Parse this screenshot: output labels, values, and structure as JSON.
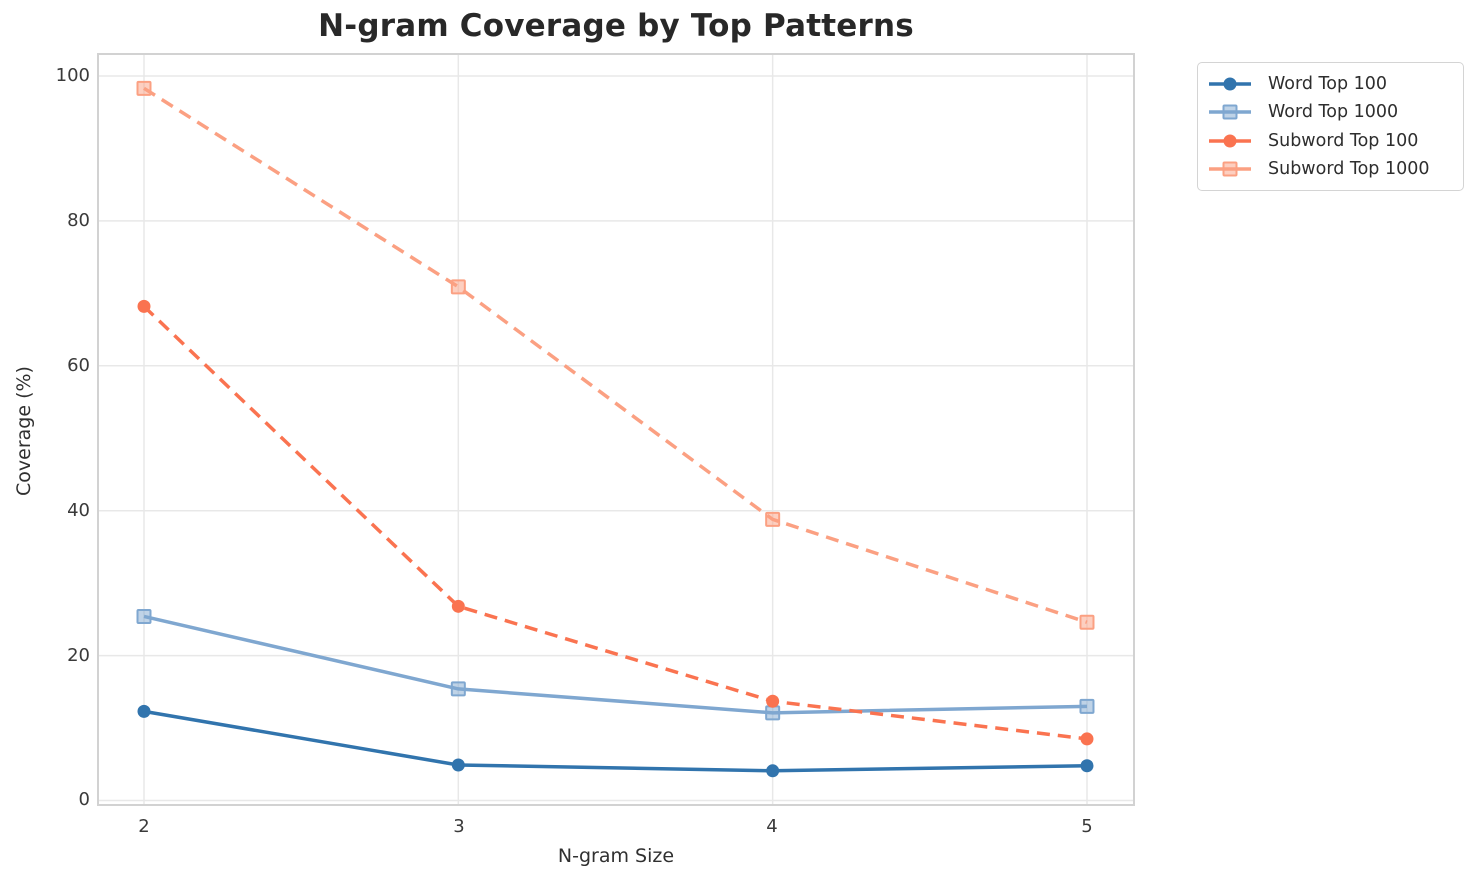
{
  "chart_data": {
    "type": "line",
    "title": "N-gram Coverage by Top Patterns",
    "xlabel": "N-gram Size",
    "ylabel": "Coverage (%)",
    "x": [
      2,
      3,
      4,
      5
    ],
    "xticks": [
      "2",
      "3",
      "4",
      "5"
    ],
    "yticks": [
      "0",
      "20",
      "40",
      "60",
      "80",
      "100"
    ],
    "ylim": [
      0,
      100
    ],
    "grid": true,
    "legend_position": "outside-upper-right",
    "series": [
      {
        "name": "Word Top 100",
        "values": [
          12.3,
          4.9,
          4.1,
          4.8
        ],
        "color": "#3174ad",
        "marker": "circle",
        "line": "solid"
      },
      {
        "name": "Word Top 1000",
        "values": [
          25.4,
          15.4,
          12.1,
          13.0
        ],
        "color": "#7fa7d0",
        "marker": "square",
        "line": "solid"
      },
      {
        "name": "Subword Top 100",
        "values": [
          68.2,
          26.8,
          13.7,
          8.5
        ],
        "color": "#fa7350",
        "marker": "circle",
        "line": "dashed"
      },
      {
        "name": "Subword Top 1000",
        "values": [
          98.3,
          70.9,
          38.8,
          24.6
        ],
        "color": "#fba082",
        "marker": "square",
        "line": "dashed"
      }
    ],
    "colors": {
      "grid": "#e8e8e8",
      "spine": "#d2d2d2",
      "background": "#ffffff"
    }
  }
}
